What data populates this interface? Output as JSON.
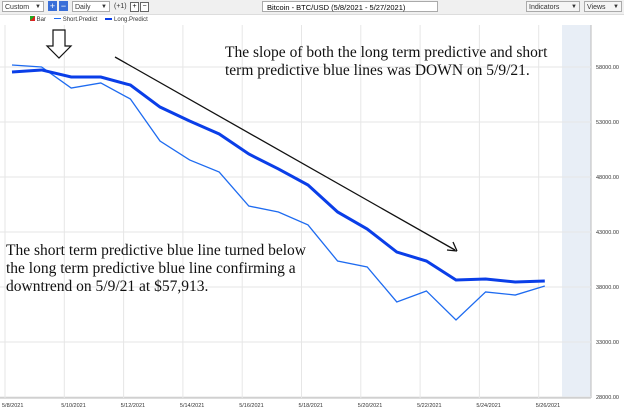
{
  "toolbar": {
    "range": "Custom",
    "interval": "Daily",
    "offset": "(+1)",
    "title": "Bitcoin - BTC/USD (5/8/2021 - 5/27/2021)",
    "indicators": "Indicators",
    "views": "Views"
  },
  "legend": {
    "bar": "Bar",
    "short": "Short.Predict",
    "long": "Long.Predict"
  },
  "annotations": {
    "top": "The slope of both the long term predictive and short term predictive blue lines was DOWN on 5/9/21.",
    "bottom": "The short term predictive blue line turned below the long term predictive blue line confirming a downtrend on 5/9/21 at $57,913."
  },
  "colors": {
    "short": "#1e6bf0",
    "long": "#0a3ee8",
    "grid": "#e6e6e6",
    "shade": "#e8eef6"
  },
  "chart_data": {
    "type": "line",
    "title": "Bitcoin - BTC/USD (5/8/2021 - 5/27/2021)",
    "x": [
      "5/8",
      "5/9",
      "5/10",
      "5/11",
      "5/12",
      "5/13",
      "5/14",
      "5/15",
      "5/16",
      "5/17",
      "5/18",
      "5/19",
      "5/20",
      "5/21",
      "5/22",
      "5/23",
      "5/24",
      "5/25",
      "5/26"
    ],
    "x_ticks": [
      "5/8/2021",
      "5/10/2021",
      "5/12/2021",
      "5/14/2021",
      "5/16/2021",
      "5/18/2021",
      "5/20/2021",
      "5/22/2021",
      "5/24/2021",
      "5/26/2021"
    ],
    "y_ticks": [
      "58000.00",
      "53000.00",
      "48000.00",
      "43000.00",
      "38000.00",
      "33000.00",
      "28000.00"
    ],
    "ylim": [
      28000,
      60000
    ],
    "series": [
      {
        "name": "Short.Predict",
        "values": [
          58180,
          58000,
          56090,
          56550,
          55090,
          51270,
          49550,
          48450,
          45360,
          44820,
          43640,
          40360,
          39820,
          36640,
          37640,
          35000,
          37550,
          37270,
          38090
        ]
      },
      {
        "name": "Long.Predict",
        "values": [
          57550,
          57730,
          57090,
          57090,
          56360,
          54360,
          53090,
          51910,
          50090,
          48730,
          47270,
          44820,
          43270,
          41180,
          40360,
          38640,
          38730,
          38450,
          38550
        ]
      }
    ]
  }
}
